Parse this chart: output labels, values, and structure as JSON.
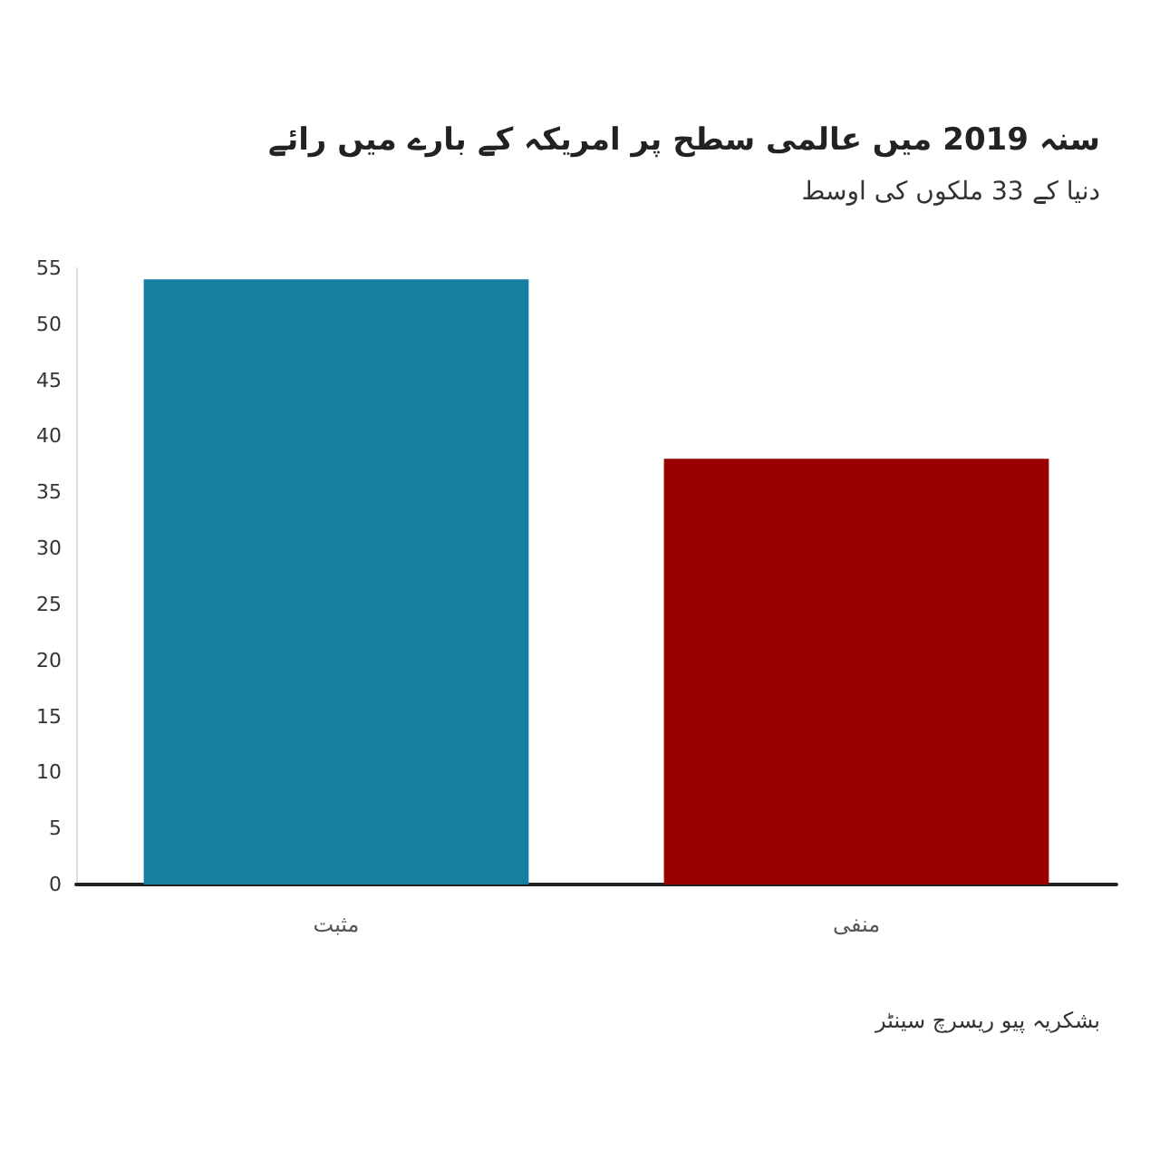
{
  "chart_data": {
    "type": "bar",
    "title": "سنہ 2019 میں عالمی سطح پر امریکہ کے بارے میں رائے",
    "subtitle": "دنیا کے 33 ملکوں کی اوسط",
    "categories": [
      "مثبت",
      "منفی"
    ],
    "values": [
      54,
      38
    ],
    "colors": [
      "#157ea1",
      "#990000"
    ],
    "ylim": [
      0,
      55
    ],
    "yticks": [
      0,
      5,
      10,
      15,
      20,
      25,
      30,
      35,
      40,
      45,
      50,
      55
    ],
    "grid": false,
    "annotations": [
      "بشکریہ پیو ریسرچ سینٹر"
    ]
  }
}
